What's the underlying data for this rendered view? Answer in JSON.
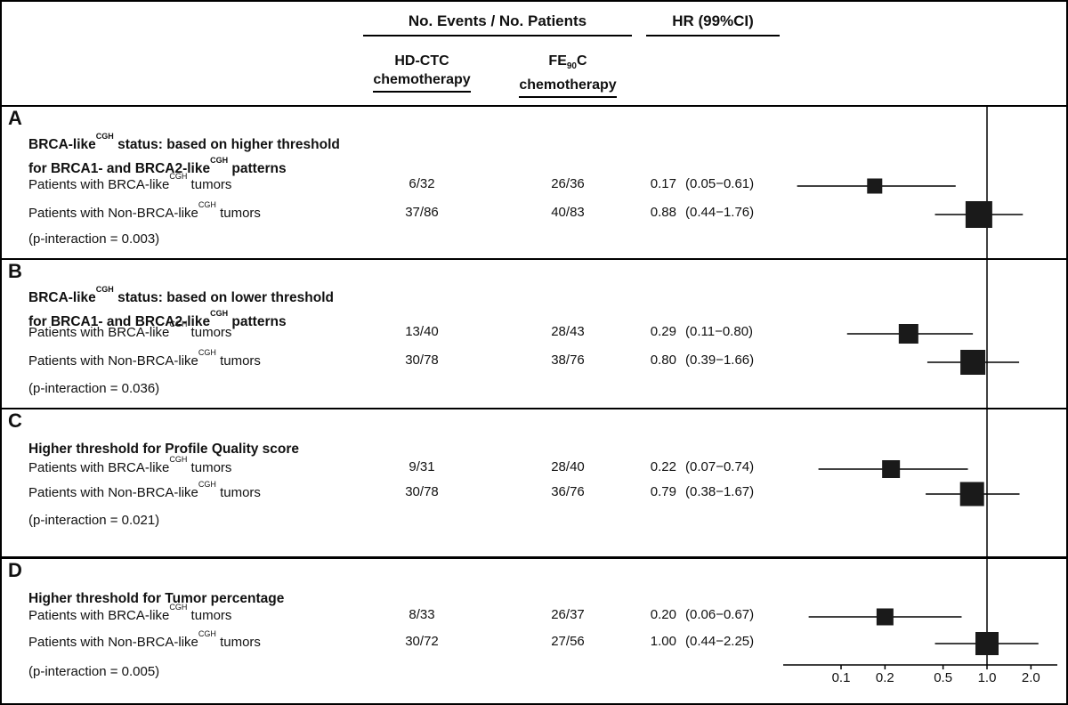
{
  "header": {
    "events_title": "No. Events / No. Patients",
    "hr_title": "HR (99%CI)",
    "col1_line1": "HD-CTC",
    "col1_line2": "chemotherapy",
    "col2_pre": "FE",
    "col2_sub": "90",
    "col2_post": "C",
    "col2_line2": "chemotherapy"
  },
  "chart_data": {
    "type": "forest",
    "x_scale": "log",
    "legend": "none",
    "axis": {
      "reference_value": 1.0,
      "xlim": [
        0.045,
        2.6
      ],
      "ticks": [
        {
          "value": 0.1,
          "label": "0.1"
        },
        {
          "value": 0.2,
          "label": "0.2"
        },
        {
          "value": 0.5,
          "label": "0.5"
        },
        {
          "value": 1.0,
          "label": "1.0"
        },
        {
          "value": 2.0,
          "label": "2.0"
        }
      ]
    },
    "panels": [
      {
        "letter": "A",
        "title_line1_pre": "BRCA-like",
        "title_line1_sup": "CGH",
        "title_line1_post": " status: based on higher threshold",
        "title_line2_pre": "for BRCA1- and BRCA2-like",
        "title_line2_sup": "CGH",
        "title_line2_post": " patterns",
        "p_text": "(p-interaction = 0.003)",
        "rows": [
          {
            "label_prefix": "Patients with BRCA-like",
            "label_sup": "CGH",
            "label_suffix": " tumors",
            "n_hdctc": "6/32",
            "n_fe90c": "26/36",
            "hr_text": "0.17",
            "ci_text": "(0.05−0.61)",
            "hr": 0.17,
            "ci_low": 0.05,
            "ci_high": 0.61,
            "marker_size": 17
          },
          {
            "label_prefix": "Patients with Non-BRCA-like",
            "label_sup": "CGH",
            "label_suffix": " tumors",
            "n_hdctc": "37/86",
            "n_fe90c": "40/83",
            "hr_text": "0.88",
            "ci_text": "(0.44−1.76)",
            "hr": 0.88,
            "ci_low": 0.44,
            "ci_high": 1.76,
            "marker_size": 30
          }
        ]
      },
      {
        "letter": "B",
        "title_line1_pre": "BRCA-like",
        "title_line1_sup": "CGH",
        "title_line1_post": " status: based on lower threshold",
        "title_line2_pre": "for BRCA1- and BRCA2-like",
        "title_line2_sup": "CGH",
        "title_line2_post": " patterns",
        "p_text": "(p-interaction = 0.036)",
        "rows": [
          {
            "label_prefix": "Patients with BRCA-like",
            "label_sup": "CGH",
            "label_suffix": " tumors",
            "n_hdctc": "13/40",
            "n_fe90c": "28/43",
            "hr_text": "0.29",
            "ci_text": "(0.11−0.80)",
            "hr": 0.29,
            "ci_low": 0.11,
            "ci_high": 0.8,
            "marker_size": 22
          },
          {
            "label_prefix": "Patients with Non-BRCA-like",
            "label_sup": "CGH",
            "label_suffix": " tumors",
            "n_hdctc": "30/78",
            "n_fe90c": "38/76",
            "hr_text": "0.80",
            "ci_text": "(0.39−1.66)",
            "hr": 0.8,
            "ci_low": 0.39,
            "ci_high": 1.66,
            "marker_size": 28
          }
        ]
      },
      {
        "letter": "C",
        "title_line1_pre": "Higher threshold for Profile Quality score",
        "p_text": "(p-interaction = 0.021)",
        "rows": [
          {
            "label_prefix": "Patients with BRCA-like",
            "label_sup": "CGH",
            "label_suffix": " tumors",
            "n_hdctc": "9/31",
            "n_fe90c": "28/40",
            "hr_text": "0.22",
            "ci_text": "(0.07−0.74)",
            "hr": 0.22,
            "ci_low": 0.07,
            "ci_high": 0.74,
            "marker_size": 20
          },
          {
            "label_prefix": "Patients with Non-BRCA-like",
            "label_sup": "CGH",
            "label_suffix": " tumors",
            "n_hdctc": "30/78",
            "n_fe90c": "36/76",
            "hr_text": "0.79",
            "ci_text": "(0.38−1.67)",
            "hr": 0.79,
            "ci_low": 0.38,
            "ci_high": 1.67,
            "marker_size": 27
          }
        ]
      },
      {
        "letter": "D",
        "title_line1_pre": "Higher threshold for Tumor percentage",
        "p_text": "(p-interaction = 0.005)",
        "rows": [
          {
            "label_prefix": "Patients with BRCA-like",
            "label_sup": "CGH",
            "label_suffix": " tumors",
            "n_hdctc": "8/33",
            "n_fe90c": "26/37",
            "hr_text": "0.20",
            "ci_text": "(0.06−0.67)",
            "hr": 0.2,
            "ci_low": 0.06,
            "ci_high": 0.67,
            "marker_size": 19
          },
          {
            "label_prefix": "Patients with Non-BRCA-like",
            "label_sup": "CGH",
            "label_suffix": " tumors",
            "n_hdctc": "30/72",
            "n_fe90c": "27/56",
            "hr_text": "1.00",
            "ci_text": "(0.44−2.25)",
            "hr": 1.0,
            "ci_low": 0.44,
            "ci_high": 2.25,
            "marker_size": 26
          }
        ]
      }
    ]
  }
}
